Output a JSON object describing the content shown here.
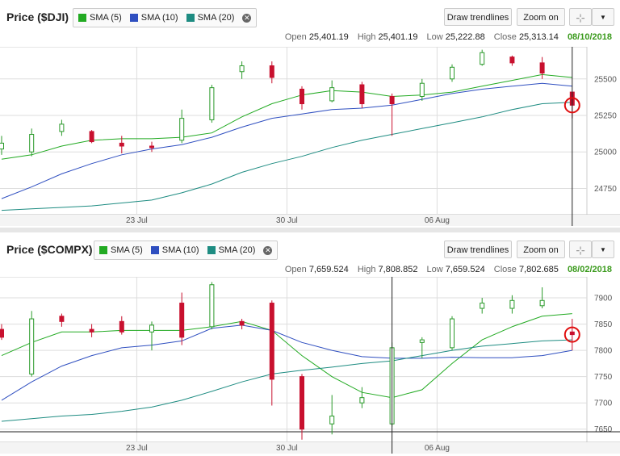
{
  "buttons": {
    "draw_trendlines": "Draw trendlines",
    "zoom_on": "Zoom on",
    "crosshair_icon": "crosshair-icon",
    "dropdown_icon": "chevron-down-icon"
  },
  "legend": [
    {
      "label": "SMA (5)",
      "color": "#22aa22"
    },
    {
      "label": "SMA (10)",
      "color": "#2f4fc0"
    },
    {
      "label": "SMA (20)",
      "color": "#1e8c82"
    }
  ],
  "colors": {
    "up": "#2a9a2a",
    "down": "#c8102e",
    "grid": "#dddddd",
    "marker": "#e01010"
  },
  "chart_data": [
    {
      "type": "candlestick",
      "title": "Price ($DJI)",
      "ohlc": {
        "open_label": "Open",
        "open": "25,401.19",
        "high_label": "High",
        "high": "25,401.19",
        "low_label": "Low",
        "low": "25,222.88",
        "close_label": "Close",
        "close": "25,313.14",
        "date": "08/10/2018"
      },
      "ylim": [
        24570,
        25720
      ],
      "yticks": [
        24750,
        25000,
        25250,
        25500
      ],
      "ytick_labels": [
        "24750",
        "25000",
        "25250",
        "25500"
      ],
      "xticks": [
        {
          "index": 4.5,
          "label": "23 Jul"
        },
        {
          "index": 9.5,
          "label": "30 Jul"
        },
        {
          "index": 14.5,
          "label": "06 Aug"
        }
      ],
      "crosshair_index": 19,
      "marker_index": 19,
      "candles": [
        {
          "o": 25020,
          "h": 25110,
          "l": 24980,
          "c": 25060
        },
        {
          "o": 25000,
          "h": 25160,
          "l": 24970,
          "c": 25120
        },
        {
          "o": 25140,
          "h": 25220,
          "l": 25110,
          "c": 25190
        },
        {
          "o": 25140,
          "h": 25150,
          "l": 25060,
          "c": 25070
        },
        {
          "o": 25060,
          "h": 25110,
          "l": 24990,
          "c": 25040
        },
        {
          "o": 25040,
          "h": 25070,
          "l": 25000,
          "c": 25030
        },
        {
          "o": 25080,
          "h": 25290,
          "l": 25060,
          "c": 25230
        },
        {
          "o": 25220,
          "h": 25460,
          "l": 25200,
          "c": 25440
        },
        {
          "o": 25550,
          "h": 25620,
          "l": 25500,
          "c": 25590
        },
        {
          "o": 25590,
          "h": 25620,
          "l": 25470,
          "c": 25510
        },
        {
          "o": 25430,
          "h": 25450,
          "l": 25290,
          "c": 25330
        },
        {
          "o": 25350,
          "h": 25490,
          "l": 25340,
          "c": 25440
        },
        {
          "o": 25460,
          "h": 25480,
          "l": 25300,
          "c": 25330
        },
        {
          "o": 25380,
          "h": 25400,
          "l": 25110,
          "c": 25330
        },
        {
          "o": 25380,
          "h": 25500,
          "l": 25350,
          "c": 25470
        },
        {
          "o": 25500,
          "h": 25600,
          "l": 25480,
          "c": 25580
        },
        {
          "o": 25600,
          "h": 25700,
          "l": 25590,
          "c": 25680
        },
        {
          "o": 25650,
          "h": 25660,
          "l": 25590,
          "c": 25610
        },
        {
          "o": 25610,
          "h": 25650,
          "l": 25500,
          "c": 25540
        },
        {
          "o": 25410,
          "h": 25410,
          "l": 25230,
          "c": 25320
        }
      ],
      "series": [
        {
          "name": "SMA (5)",
          "values": [
            24950,
            24980,
            25040,
            25080,
            25090,
            25090,
            25100,
            25130,
            25240,
            25330,
            25390,
            25420,
            25410,
            25380,
            25390,
            25410,
            25450,
            25490,
            25530,
            25510
          ]
        },
        {
          "name": "SMA (10)",
          "values": [
            24680,
            24760,
            24850,
            24920,
            24980,
            25020,
            25050,
            25100,
            25170,
            25230,
            25260,
            25290,
            25300,
            25320,
            25360,
            25400,
            25430,
            25450,
            25470,
            25450
          ]
        },
        {
          "name": "SMA (20)",
          "values": [
            24600,
            24610,
            24620,
            24630,
            24650,
            24670,
            24720,
            24780,
            24860,
            24920,
            24970,
            25030,
            25080,
            25120,
            25160,
            25200,
            25240,
            25290,
            25330,
            25340
          ]
        }
      ]
    },
    {
      "type": "candlestick",
      "title": "Price ($COMPX)",
      "ohlc": {
        "open_label": "Open",
        "open": "7,659.524",
        "high_label": "High",
        "high": "7,808.852",
        "low_label": "Low",
        "low": "7,659.524",
        "close_label": "Close",
        "close": "7,802.685",
        "date": "08/02/2018"
      },
      "ylim": [
        7625,
        7940
      ],
      "yticks": [
        7650,
        7700,
        7750,
        7800,
        7850,
        7900
      ],
      "ytick_labels": [
        "7650",
        "7700",
        "7750",
        "7800",
        "7850",
        "7900"
      ],
      "xticks": [
        {
          "index": 4.5,
          "label": "23 Jul"
        },
        {
          "index": 9.5,
          "label": "30 Jul"
        },
        {
          "index": 14.5,
          "label": "06 Aug"
        }
      ],
      "crosshair_index": 13,
      "marker_index": 19,
      "hline": 7645,
      "candles": [
        {
          "o": 7840,
          "h": 7850,
          "l": 7820,
          "c": 7825
        },
        {
          "o": 7755,
          "h": 7875,
          "l": 7750,
          "c": 7860
        },
        {
          "o": 7865,
          "h": 7870,
          "l": 7845,
          "c": 7855
        },
        {
          "o": 7840,
          "h": 7850,
          "l": 7825,
          "c": 7835
        },
        {
          "o": 7855,
          "h": 7865,
          "l": 7830,
          "c": 7835
        },
        {
          "o": 7835,
          "h": 7855,
          "l": 7800,
          "c": 7848
        },
        {
          "o": 7890,
          "h": 7910,
          "l": 7810,
          "c": 7825
        },
        {
          "o": 7845,
          "h": 7930,
          "l": 7840,
          "c": 7925
        },
        {
          "o": 7855,
          "h": 7860,
          "l": 7840,
          "c": 7848
        },
        {
          "o": 7890,
          "h": 7895,
          "l": 7695,
          "c": 7745
        },
        {
          "o": 7750,
          "h": 7755,
          "l": 7630,
          "c": 7650
        },
        {
          "o": 7660,
          "h": 7715,
          "l": 7640,
          "c": 7675
        },
        {
          "o": 7700,
          "h": 7730,
          "l": 7690,
          "c": 7710
        },
        {
          "o": 7660,
          "h": 7815,
          "l": 7655,
          "c": 7805
        },
        {
          "o": 7815,
          "h": 7825,
          "l": 7785,
          "c": 7820
        },
        {
          "o": 7805,
          "h": 7865,
          "l": 7800,
          "c": 7860
        },
        {
          "o": 7880,
          "h": 7900,
          "l": 7870,
          "c": 7890
        },
        {
          "o": 7880,
          "h": 7905,
          "l": 7870,
          "c": 7895
        },
        {
          "o": 7885,
          "h": 7920,
          "l": 7880,
          "c": 7895
        },
        {
          "o": 7835,
          "h": 7860,
          "l": 7800,
          "c": 7830
        }
      ],
      "series": [
        {
          "name": "SMA (5)",
          "values": [
            7790,
            7815,
            7835,
            7835,
            7838,
            7838,
            7838,
            7845,
            7855,
            7838,
            7790,
            7750,
            7720,
            7710,
            7725,
            7775,
            7820,
            7845,
            7865,
            7870
          ]
        },
        {
          "name": "SMA (10)",
          "values": [
            7705,
            7740,
            7770,
            7790,
            7805,
            7810,
            7818,
            7842,
            7848,
            7838,
            7815,
            7800,
            7788,
            7785,
            7785,
            7787,
            7786,
            7786,
            7790,
            7800
          ]
        },
        {
          "name": "SMA (20)",
          "values": [
            7665,
            7670,
            7675,
            7678,
            7684,
            7692,
            7705,
            7722,
            7740,
            7755,
            7762,
            7768,
            7775,
            7780,
            7790,
            7800,
            7808,
            7813,
            7818,
            7820
          ]
        }
      ]
    }
  ]
}
